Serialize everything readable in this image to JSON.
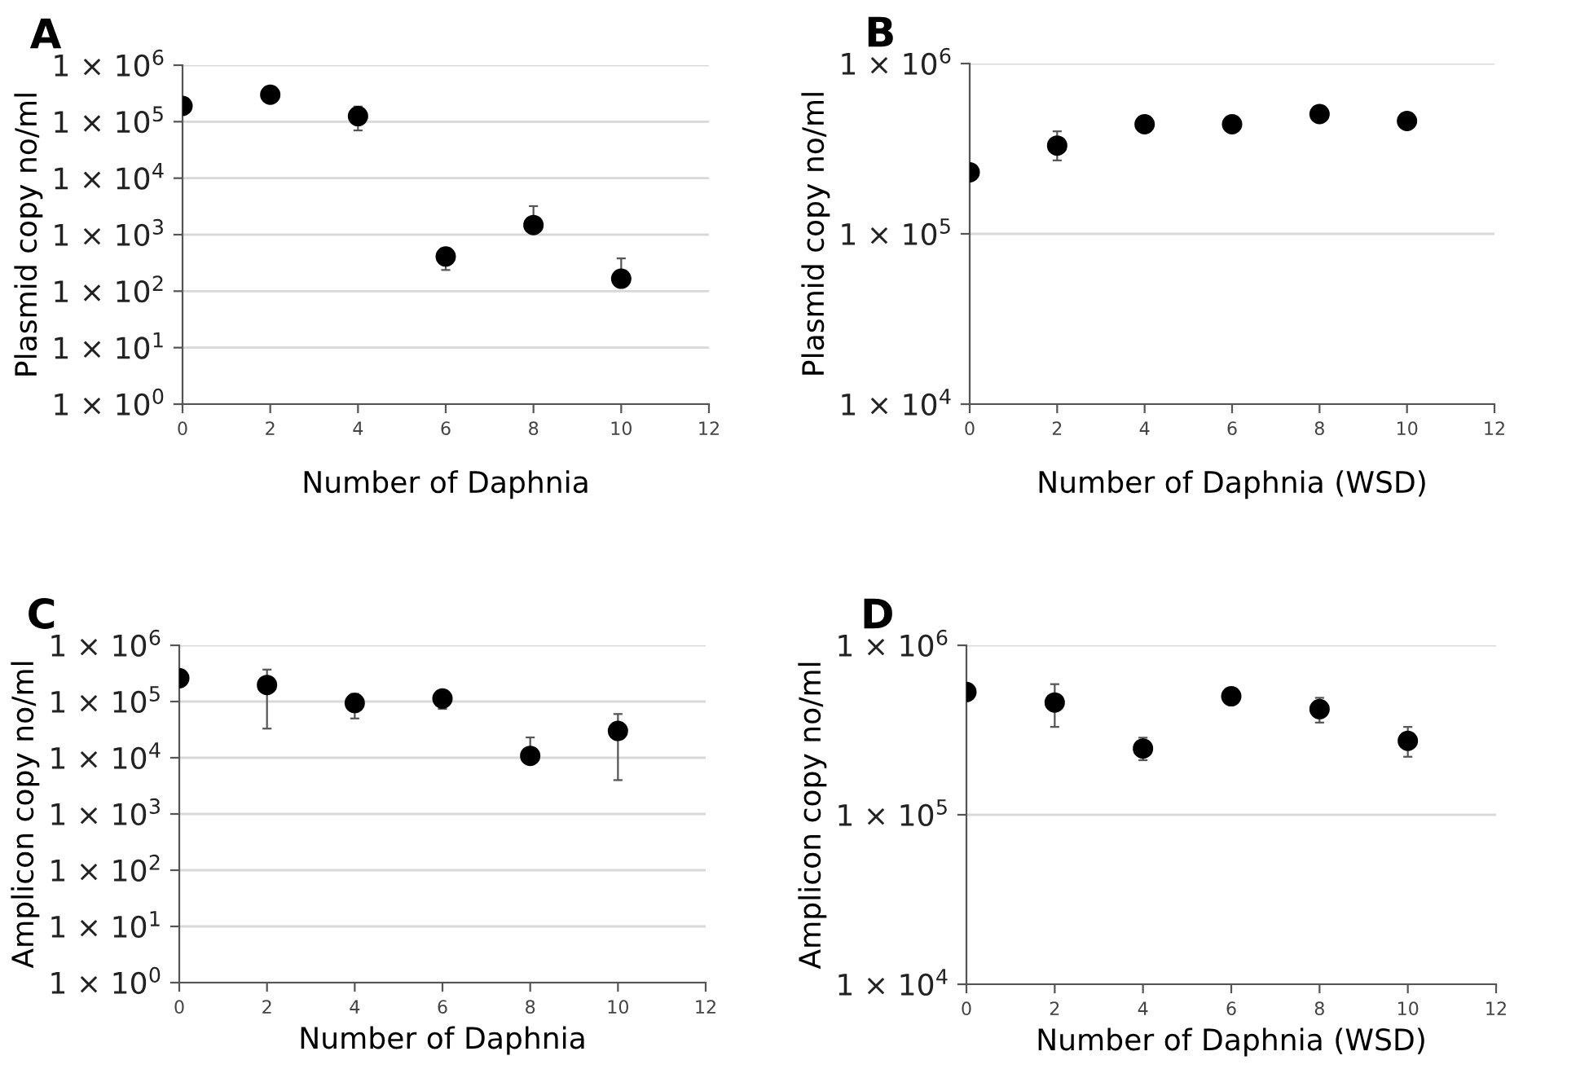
{
  "chart_data": [
    {
      "type": "scatter",
      "title": "A",
      "xlabel": "Number of Daphnia",
      "ylabel": "Plasmid copy no/ml",
      "log": "y",
      "grid": "y",
      "marker": "circle",
      "x": [
        0,
        2,
        4,
        6,
        8,
        10
      ],
      "series": [
        {
          "color": "#000000",
          "values": [
            190000,
            300000,
            125000,
            410,
            1480,
            166
          ],
          "errors": [
            null,
            null,
            [
              70000,
              185000
            ],
            [
              237,
              575
            ],
            [
              1480,
              3200
            ],
            [
              166,
              380
            ]
          ]
        }
      ],
      "xlim": [
        0,
        12
      ],
      "xticks": [
        0,
        2,
        4,
        6,
        8,
        10,
        12
      ],
      "ylim": [
        1,
        1000000
      ],
      "yticks": [
        {
          "value": 1,
          "label": "1 × 10$^{0}$"
        },
        {
          "value": 10,
          "label": "1 × 10$^{1}$"
        },
        {
          "value": 100,
          "label": "1 × 10$^{2}$"
        },
        {
          "value": 1000,
          "label": "1 × 10$^{3}$"
        },
        {
          "value": 10000,
          "label": "1 × 10$^{4}$"
        },
        {
          "value": 100000,
          "label": "1 × 10$^{5}$"
        },
        {
          "value": 1000000,
          "label": "1 × 10$^{6}$"
        }
      ]
    },
    {
      "type": "scatter",
      "title": "B",
      "xlabel": "Number of Daphnia (WSD)",
      "ylabel": "Plasmid copy no/ml",
      "log": "y",
      "grid": "y",
      "marker": "circle",
      "x": [
        0,
        2,
        4,
        6,
        8,
        10
      ],
      "series": [
        {
          "color": "#000000",
          "values": [
            230000,
            330000,
            440000,
            440000,
            505000,
            460000
          ],
          "errors": [
            null,
            [
              270000,
              400000
            ],
            null,
            null,
            null,
            null
          ]
        }
      ],
      "xlim": [
        0,
        12
      ],
      "xticks": [
        0,
        2,
        4,
        6,
        8,
        10,
        12
      ],
      "ylim": [
        10000,
        1000000
      ],
      "yticks": [
        {
          "value": 10000,
          "label": "1 × 10$^{4}$"
        },
        {
          "value": 100000,
          "label": "1 × 10$^{5}$"
        },
        {
          "value": 1000000,
          "label": "1 × 10$^{6}$"
        }
      ]
    },
    {
      "type": "scatter",
      "title": "C",
      "xlabel": "Number of Daphnia",
      "ylabel": "Amplicon copy no/ml",
      "log": "y",
      "grid": "y",
      "marker": "circle",
      "x": [
        0,
        2,
        4,
        6,
        8,
        10
      ],
      "series": [
        {
          "color": "#000000",
          "values": [
            260000,
            197000,
            94000,
            113000,
            10800,
            30000
          ],
          "errors": [
            null,
            [
              33000,
              370000
            ],
            [
              50000,
              137000
            ],
            [
              74000,
              150000
            ],
            [
              10800,
              23000
            ],
            [
              4000,
              60000
            ]
          ]
        }
      ],
      "xlim": [
        0,
        12
      ],
      "xticks": [
        0,
        2,
        4,
        6,
        8,
        10,
        12
      ],
      "ylim": [
        1,
        1000000
      ],
      "yticks": [
        {
          "value": 1,
          "label": "1 × 10$^{0}$"
        },
        {
          "value": 10,
          "label": "1 × 10$^{1}$"
        },
        {
          "value": 100,
          "label": "1 × 10$^{2}$"
        },
        {
          "value": 1000,
          "label": "1 × 10$^{3}$"
        },
        {
          "value": 10000,
          "label": "1 × 10$^{4}$"
        },
        {
          "value": 100000,
          "label": "1 × 10$^{5}$"
        },
        {
          "value": 1000000,
          "label": "1 × 10$^{6}$"
        }
      ]
    },
    {
      "type": "scatter",
      "title": "D",
      "xlabel": "Number of Daphnia (WSD)",
      "ylabel": "Amplicon copy no/ml",
      "log": "y",
      "grid": "y",
      "marker": "circle",
      "x": [
        0,
        2,
        4,
        6,
        8,
        10
      ],
      "series": [
        {
          "color": "#000000",
          "values": [
            530000,
            460000,
            246000,
            500000,
            420000,
            273000
          ],
          "errors": [
            null,
            [
              330000,
              590000
            ],
            [
              210000,
              285000
            ],
            null,
            [
              350000,
              490000
            ],
            [
              220000,
              330000
            ]
          ]
        }
      ],
      "xlim": [
        0,
        12
      ],
      "xticks": [
        0,
        2,
        4,
        6,
        8,
        10,
        12
      ],
      "ylim": [
        10000,
        1000000
      ],
      "yticks": [
        {
          "value": 10000,
          "label": "1 × 10$^{4}$"
        },
        {
          "value": 100000,
          "label": "1 × 10$^{5}$"
        },
        {
          "value": 1000000,
          "label": "1 × 10$^{6}$"
        }
      ]
    }
  ]
}
